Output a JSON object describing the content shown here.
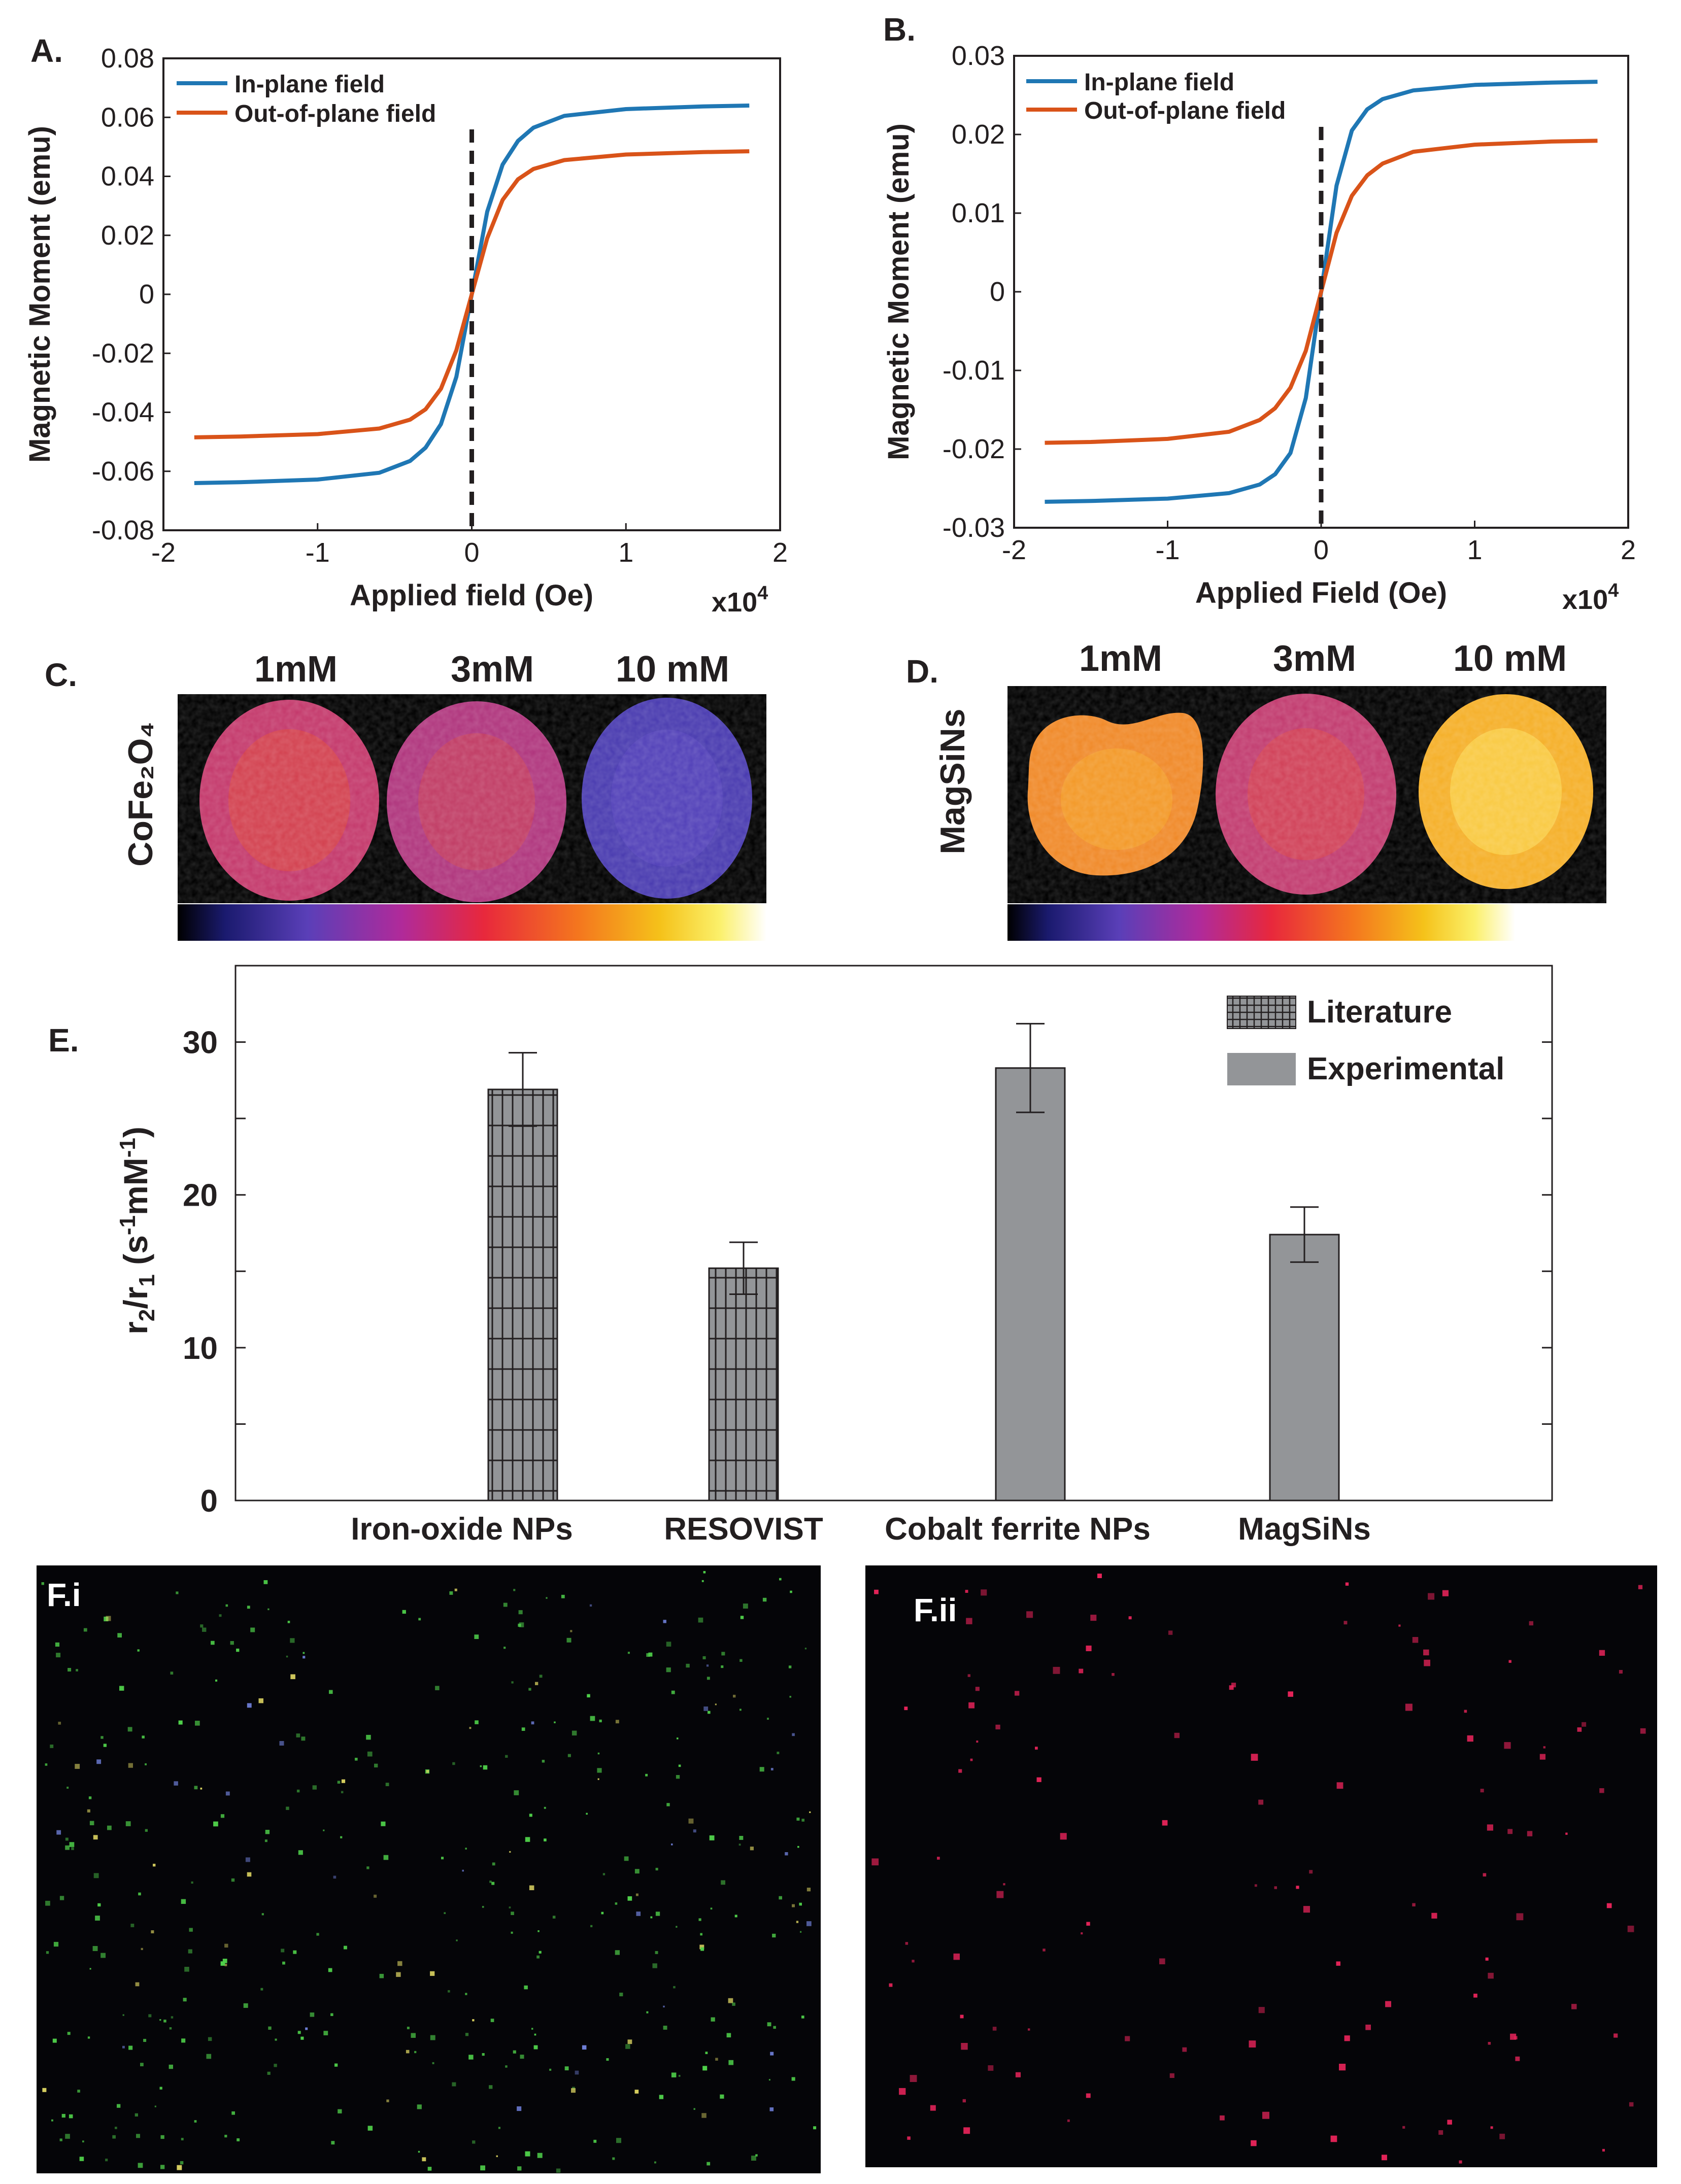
{
  "panels": {
    "a": {
      "label": "A."
    },
    "b": {
      "label": "B."
    },
    "c": {
      "label": "C."
    },
    "d": {
      "label": "D."
    },
    "e": {
      "label": "E."
    },
    "fi": {
      "label": "F.i"
    },
    "fii": {
      "label": "F.ii"
    }
  },
  "panel_c": {
    "row_label": "CoFe₂O₄",
    "concentrations": [
      "1mM",
      "3mM",
      "10 mM"
    ]
  },
  "panel_d": {
    "row_label": "MagSiNs",
    "concentrations": [
      "1mM",
      "3mM",
      "10 mM"
    ]
  },
  "chart_data": [
    {
      "id": "A",
      "type": "line",
      "xlabel": "Applied field (Oe)",
      "ylabel": "Magnetic Moment (emu)",
      "x_multiplier": "x10",
      "x_multiplier_exp": "4",
      "xlim": [
        -2,
        2
      ],
      "ylim": [
        -0.08,
        0.08
      ],
      "x_ticks": [
        -2,
        -1,
        0,
        1,
        2
      ],
      "y_ticks": [
        -0.08,
        -0.06,
        -0.04,
        -0.02,
        0,
        0.02,
        0.04,
        0.06,
        0.08
      ],
      "x_tick_labels": [
        "-2",
        "-1",
        "0",
        "1",
        "2"
      ],
      "y_tick_labels": [
        "-0.08",
        "-0.06",
        "-0.04",
        "-0.02",
        "0",
        "0.02",
        "0.04",
        "0.06",
        "0.08"
      ],
      "vline_x": 0,
      "legend_position": "top-left",
      "series": [
        {
          "name": "In-plane field",
          "color": "#1f77b4",
          "x": [
            -1.8,
            -1.5,
            -1.0,
            -0.6,
            -0.4,
            -0.3,
            -0.2,
            -0.1,
            0,
            0.1,
            0.2,
            0.3,
            0.4,
            0.6,
            1.0,
            1.5,
            1.8
          ],
          "y": [
            -0.064,
            -0.0637,
            -0.0628,
            -0.0605,
            -0.0565,
            -0.052,
            -0.044,
            -0.028,
            0,
            0.028,
            0.044,
            0.052,
            0.0565,
            0.0605,
            0.0628,
            0.0637,
            0.064
          ]
        },
        {
          "name": "Out-of-plane field",
          "color": "#d95319",
          "x": [
            -1.8,
            -1.5,
            -1.0,
            -0.6,
            -0.4,
            -0.3,
            -0.2,
            -0.1,
            0,
            0.1,
            0.2,
            0.3,
            0.4,
            0.6,
            1.0,
            1.5,
            1.8
          ],
          "y": [
            -0.0485,
            -0.0482,
            -0.0474,
            -0.0455,
            -0.0425,
            -0.039,
            -0.032,
            -0.019,
            0,
            0.019,
            0.032,
            0.039,
            0.0425,
            0.0455,
            0.0474,
            0.0482,
            0.0485
          ]
        }
      ]
    },
    {
      "id": "B",
      "type": "line",
      "xlabel": "Applied Field (Oe)",
      "ylabel": "Magnetic Moment (emu)",
      "x_multiplier": "x10",
      "x_multiplier_exp": "4",
      "xlim": [
        -2,
        2
      ],
      "ylim": [
        -0.03,
        0.03
      ],
      "x_ticks": [
        -2,
        -1,
        0,
        1,
        2
      ],
      "y_ticks": [
        -0.03,
        -0.02,
        -0.01,
        0,
        0.01,
        0.02,
        0.03
      ],
      "x_tick_labels": [
        "-2",
        "-1",
        "0",
        "1",
        "2"
      ],
      "y_tick_labels": [
        "-0.03",
        "-0.02",
        "-0.01",
        "0",
        "0.01",
        "0.02",
        "0.03"
      ],
      "vline_x": 0,
      "legend_position": "top-left",
      "series": [
        {
          "name": "In-plane field",
          "color": "#1f77b4",
          "x": [
            -1.8,
            -1.5,
            -1.0,
            -0.6,
            -0.4,
            -0.3,
            -0.2,
            -0.1,
            0,
            0.1,
            0.2,
            0.3,
            0.4,
            0.6,
            1.0,
            1.5,
            1.8
          ],
          "y": [
            -0.0267,
            -0.0266,
            -0.0263,
            -0.0256,
            -0.0245,
            -0.0232,
            -0.0205,
            -0.0135,
            0,
            0.0135,
            0.0205,
            0.0232,
            0.0245,
            0.0256,
            0.0263,
            0.0266,
            0.0267
          ]
        },
        {
          "name": "Out-of-plane field",
          "color": "#d95319",
          "x": [
            -1.8,
            -1.5,
            -1.0,
            -0.6,
            -0.4,
            -0.3,
            -0.2,
            -0.1,
            0,
            0.1,
            0.2,
            0.3,
            0.4,
            0.6,
            1.0,
            1.5,
            1.8
          ],
          "y": [
            -0.0192,
            -0.0191,
            -0.0187,
            -0.0178,
            -0.0163,
            -0.0148,
            -0.0122,
            -0.0075,
            0,
            0.0075,
            0.0122,
            0.0148,
            0.0163,
            0.0178,
            0.0187,
            0.0191,
            0.0192
          ]
        }
      ]
    },
    {
      "id": "E",
      "type": "bar",
      "ylabel_parts": [
        "r",
        "2",
        "/r",
        "1",
        " (s",
        "-1",
        "mM",
        "-1",
        ")"
      ],
      "ylim": [
        0,
        35
      ],
      "y_ticks": [
        0,
        10,
        20,
        30
      ],
      "y_tick_labels": [
        "0",
        "10",
        "20",
        "30"
      ],
      "categories": [
        "Iron-oxide NPs",
        "RESOVIST",
        "Cobalt ferrite NPs",
        "MagSiNs"
      ],
      "values": [
        26.9,
        15.2,
        28.3,
        17.4
      ],
      "errors": [
        2.4,
        1.7,
        2.9,
        1.8
      ],
      "bar_types": [
        "Literature",
        "Literature",
        "Experimental",
        "Experimental"
      ],
      "legend": [
        "Literature",
        "Experimental"
      ],
      "legend_position": "top-right",
      "bar_color": "#939598"
    }
  ]
}
